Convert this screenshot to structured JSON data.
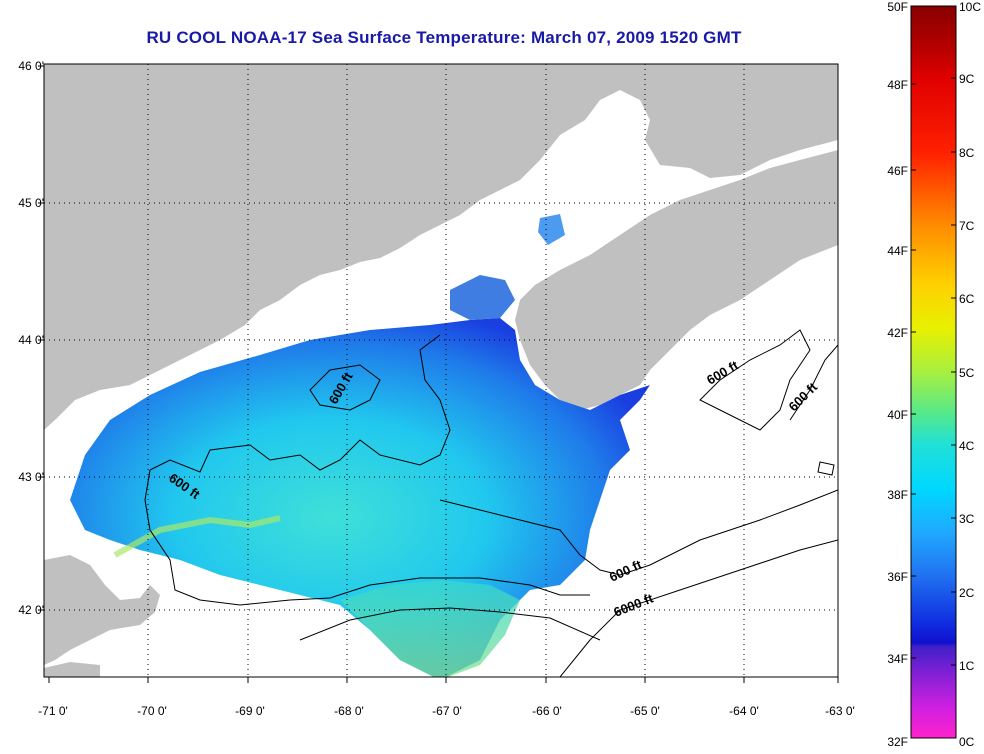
{
  "title": "RU COOL  NOAA-17  Sea Surface Temperature:  March 07, 2009 1520 GMT",
  "map": {
    "lon_labels": [
      "-71 0'",
      "-70 0'",
      "-69 0'",
      "-68 0'",
      "-67 0'",
      "-66 0'",
      "-65 0'",
      "-64 0'",
      "-63 0'"
    ],
    "lat_labels": [
      "46 0'",
      "45 0'",
      "44 0'",
      "43 0'",
      "42 0'"
    ],
    "contour_labels": [
      "600 ft",
      "600 ft",
      "600 ft",
      "600 ft",
      "600 ft",
      "6000 ft"
    ],
    "land_color": "#c0c0c0",
    "ocean_color": "#ffffff"
  },
  "colorbar": {
    "fahrenheit_labels": [
      "50F",
      "48F",
      "46F",
      "44F",
      "42F",
      "40F",
      "38F",
      "36F",
      "34F",
      "32F"
    ],
    "celsius_labels": [
      "10C",
      "9C",
      "8C",
      "7C",
      "6C",
      "5C",
      "4C",
      "3C",
      "2C",
      "1C",
      "0C"
    ],
    "scale_top": "#880000",
    "scale_bottom": "#ff22cc"
  }
}
